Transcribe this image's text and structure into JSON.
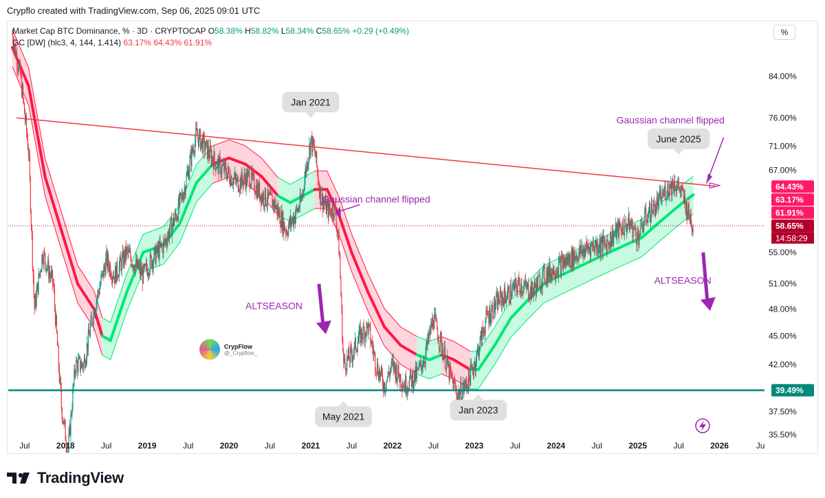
{
  "header": {
    "title": "Crypflo created with TradingView.com, Sep 06, 2025 09:01 UTC"
  },
  "legend": {
    "symbol": "Market Cap BTC Dominance, % · 3D · CRYPTOCAP",
    "o_label": "O",
    "o_value": "58.38%",
    "h_label": "H",
    "h_value": "58.82%",
    "l_label": "L",
    "l_value": "58.34%",
    "c_label": "C",
    "c_value": "58.65%",
    "change": "+0.29 (+0.49%)",
    "indicator": "GC [DW] (hlc3, 4, 144, 1.414)",
    "ind_v1": "63.17%",
    "ind_v2": "64.43%",
    "ind_v3": "61.91%"
  },
  "scale_button": "%",
  "watermark": {
    "name": "CrypFlow",
    "handle": "@_Crypflow_"
  },
  "footer": {
    "brand": "TradingView"
  },
  "colors": {
    "up": "#089981",
    "down": "#f23645",
    "channel_up": "#00e676",
    "channel_down": "#ff1744",
    "trendline": "#f23645",
    "support": "#00897b",
    "annotation": "#9c27b0"
  },
  "chart_data": {
    "type": "candlestick",
    "y_scale": "log",
    "y_ticks": [
      "84.00%",
      "76.00%",
      "71.00%",
      "67.00%",
      "63.17%",
      "55.00%",
      "51.00%",
      "48.00%",
      "45.00%",
      "42.00%",
      "37.50%",
      "35.50%"
    ],
    "x_ticks": [
      "Jul",
      "2018",
      "Jul",
      "2019",
      "Jul",
      "2020",
      "Jul",
      "2021",
      "Jul",
      "2022",
      "Jul",
      "2023",
      "Jul",
      "2024",
      "Jul",
      "2025",
      "Jul",
      "2026",
      "Ju"
    ],
    "price_tags": [
      {
        "label": "64.43%",
        "value": 64.43,
        "color": "#ff1a66"
      },
      {
        "label": "63.17%",
        "value": 63.17,
        "color": "#ff1a66"
      },
      {
        "label": "61.91%",
        "value": 61.91,
        "color": "#ff1a66"
      },
      {
        "label": "58.65%",
        "value": 58.65,
        "color": "#b2002a"
      },
      {
        "label": "39.49%",
        "value": 39.49,
        "color": "#00897b"
      }
    ],
    "countdown": "14:58:29",
    "last_close": 58.65,
    "support_level": 39.49,
    "price_path": [
      [
        2017.35,
        93
      ],
      [
        2017.45,
        84
      ],
      [
        2017.55,
        70
      ],
      [
        2017.62,
        48
      ],
      [
        2017.72,
        55
      ],
      [
        2017.85,
        51
      ],
      [
        2017.95,
        38
      ],
      [
        2018.03,
        34
      ],
      [
        2018.12,
        42
      ],
      [
        2018.22,
        42
      ],
      [
        2018.35,
        48
      ],
      [
        2018.5,
        54
      ],
      [
        2018.6,
        52
      ],
      [
        2018.75,
        55
      ],
      [
        2018.95,
        52
      ],
      [
        2019.05,
        54
      ],
      [
        2019.2,
        56
      ],
      [
        2019.35,
        60
      ],
      [
        2019.45,
        64
      ],
      [
        2019.55,
        70
      ],
      [
        2019.6,
        73
      ],
      [
        2019.7,
        71
      ],
      [
        2019.85,
        68
      ],
      [
        2019.95,
        67
      ],
      [
        2020.1,
        65
      ],
      [
        2020.25,
        66
      ],
      [
        2020.4,
        63
      ],
      [
        2020.55,
        62
      ],
      [
        2020.7,
        58
      ],
      [
        2020.8,
        60
      ],
      [
        2020.88,
        62
      ],
      [
        2020.95,
        68
      ],
      [
        2021.0,
        72
      ],
      [
        2021.05,
        70
      ],
      [
        2021.12,
        63
      ],
      [
        2021.2,
        61
      ],
      [
        2021.3,
        61
      ],
      [
        2021.35,
        55
      ],
      [
        2021.4,
        42
      ],
      [
        2021.5,
        43
      ],
      [
        2021.6,
        45
      ],
      [
        2021.7,
        46
      ],
      [
        2021.8,
        42
      ],
      [
        2021.9,
        40
      ],
      [
        2022.0,
        42
      ],
      [
        2022.15,
        40
      ],
      [
        2022.3,
        41
      ],
      [
        2022.4,
        43
      ],
      [
        2022.5,
        47
      ],
      [
        2022.6,
        44
      ],
      [
        2022.7,
        41
      ],
      [
        2022.8,
        39
      ],
      [
        2022.9,
        40
      ],
      [
        2023.0,
        42
      ],
      [
        2023.15,
        47
      ],
      [
        2023.3,
        49
      ],
      [
        2023.45,
        50
      ],
      [
        2023.55,
        51
      ],
      [
        2023.7,
        50
      ],
      [
        2023.85,
        52
      ],
      [
        2024.0,
        53
      ],
      [
        2024.15,
        54
      ],
      [
        2024.3,
        55
      ],
      [
        2024.45,
        56
      ],
      [
        2024.6,
        56
      ],
      [
        2024.75,
        58
      ],
      [
        2024.9,
        59
      ],
      [
        2025.0,
        57
      ],
      [
        2025.1,
        60
      ],
      [
        2025.25,
        62
      ],
      [
        2025.35,
        64
      ],
      [
        2025.45,
        65
      ],
      [
        2025.52,
        64
      ],
      [
        2025.6,
        61
      ],
      [
        2025.68,
        58.65
      ]
    ],
    "gaussian_channel": [
      [
        2017.35,
        90,
        "down"
      ],
      [
        2017.55,
        82,
        "down"
      ],
      [
        2017.75,
        66,
        "down"
      ],
      [
        2017.95,
        58,
        "down"
      ],
      [
        2018.15,
        51,
        "down"
      ],
      [
        2018.35,
        48,
        "down"
      ],
      [
        2018.45,
        45,
        "down"
      ],
      [
        2018.55,
        44.5,
        "up"
      ],
      [
        2018.75,
        50,
        "up"
      ],
      [
        2018.95,
        55,
        "up"
      ],
      [
        2019.2,
        56,
        "up"
      ],
      [
        2019.4,
        59,
        "up"
      ],
      [
        2019.6,
        65,
        "up"
      ],
      [
        2019.8,
        68,
        "up"
      ],
      [
        2020.0,
        69,
        "down"
      ],
      [
        2020.2,
        68,
        "down"
      ],
      [
        2020.4,
        66,
        "down"
      ],
      [
        2020.6,
        63,
        "down"
      ],
      [
        2020.75,
        62,
        "up"
      ],
      [
        2020.9,
        63,
        "up"
      ],
      [
        2021.05,
        64,
        "up"
      ],
      [
        2021.2,
        64,
        "down"
      ],
      [
        2021.35,
        60,
        "down"
      ],
      [
        2021.5,
        55,
        "down"
      ],
      [
        2021.7,
        50,
        "down"
      ],
      [
        2021.9,
        46,
        "down"
      ],
      [
        2022.1,
        44,
        "down"
      ],
      [
        2022.3,
        43,
        "down"
      ],
      [
        2022.45,
        42.5,
        "up"
      ],
      [
        2022.6,
        43,
        "up"
      ],
      [
        2022.75,
        42.5,
        "down"
      ],
      [
        2022.95,
        41.5,
        "down"
      ],
      [
        2023.05,
        41.5,
        "up"
      ],
      [
        2023.25,
        44,
        "up"
      ],
      [
        2023.45,
        47,
        "up"
      ],
      [
        2023.65,
        49,
        "up"
      ],
      [
        2023.85,
        51,
        "up"
      ],
      [
        2024.05,
        52,
        "up"
      ],
      [
        2024.25,
        53,
        "up"
      ],
      [
        2024.45,
        54,
        "up"
      ],
      [
        2024.65,
        55,
        "up"
      ],
      [
        2024.85,
        56,
        "up"
      ],
      [
        2025.05,
        57,
        "up"
      ],
      [
        2025.25,
        59,
        "up"
      ],
      [
        2025.45,
        61,
        "up"
      ],
      [
        2025.6,
        62.5,
        "up"
      ],
      [
        2025.68,
        63.17,
        "up"
      ]
    ],
    "trendline": {
      "from": [
        2017.4,
        76
      ],
      "to": [
        2025.95,
        64.5
      ]
    },
    "annotations": [
      {
        "text": "Jan 2021",
        "kind": "callout-down",
        "x": 2021.0,
        "y": 77
      },
      {
        "text": "May 2021",
        "kind": "callout-up",
        "x": 2021.4,
        "y": 38
      },
      {
        "text": "Jan 2023",
        "kind": "callout-up",
        "x": 2023.05,
        "y": 38.6
      },
      {
        "text": "June 2025",
        "kind": "callout-down",
        "x": 2025.5,
        "y": 70.5
      },
      {
        "text": "Gaussian channel flipped",
        "kind": "note",
        "x": 2021.8,
        "y": 62
      },
      {
        "text": "Gaussian channel flipped",
        "kind": "note",
        "x": 2025.4,
        "y": 75
      },
      {
        "text": "ALTSEASON",
        "kind": "note",
        "x": 2020.55,
        "y": 48
      },
      {
        "text": "ALTSEASON",
        "kind": "note",
        "x": 2025.55,
        "y": 51
      }
    ]
  }
}
